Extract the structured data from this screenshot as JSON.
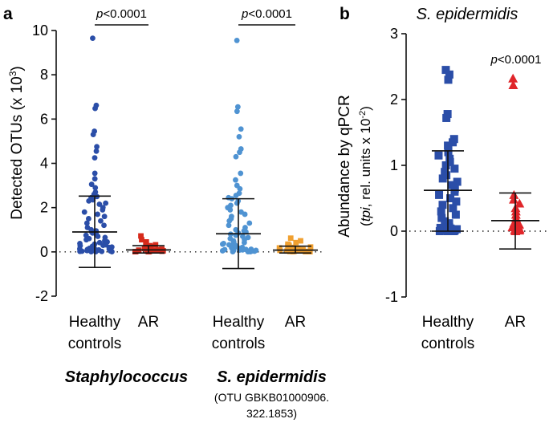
{
  "chart_data": [
    {
      "panel_letter": "a",
      "type": "scatter",
      "ylabel_main": "Detected OTUs (x 10",
      "ylabel_sup": "3",
      "ylabel_end": ")",
      "ylim": [
        -2,
        10
      ],
      "yticks": [
        -2,
        0,
        2,
        4,
        6,
        8,
        10
      ],
      "zero_line": "dotted",
      "groups": [
        {
          "label_line1": "Healthy",
          "label_line2": "controls",
          "color": "#2b4ea8",
          "marker": "circle",
          "mean": 0.9,
          "sd_low": -0.7,
          "sd_high": 2.52,
          "values": [
            9.65,
            6.62,
            6.48,
            5.45,
            5.3,
            4.75,
            4.55,
            4.25,
            3.55,
            3.3,
            3.05,
            2.9,
            2.7,
            2.6,
            2.5,
            2.45,
            2.35,
            2.3,
            2.2,
            2.15,
            2.0,
            1.9,
            1.8,
            1.7,
            1.6,
            1.5,
            1.4,
            1.3,
            1.2,
            1.1,
            1.0,
            0.95,
            0.9,
            0.85,
            0.8,
            0.75,
            0.7,
            0.65,
            0.6,
            0.55,
            0.5,
            0.45,
            0.42,
            0.38,
            0.35,
            0.32,
            0.3,
            0.28,
            0.25,
            0.22,
            0.2,
            0.18,
            0.16,
            0.15,
            0.14,
            0.12,
            0.11,
            0.1,
            0.09,
            0.08,
            0.07,
            0.06,
            0.05,
            0.04,
            0.03,
            0.02,
            0.02,
            0.01,
            0.01,
            0.01
          ]
        },
        {
          "label_line1": "AR",
          "label_line2": "",
          "color": "#d62a1b",
          "marker": "square",
          "mean": 0.09,
          "sd_low": -0.05,
          "sd_high": 0.28,
          "values": [
            0.72,
            0.55,
            0.45,
            0.38,
            0.32,
            0.28,
            0.25,
            0.22,
            0.2,
            0.18,
            0.15,
            0.12,
            0.1,
            0.08,
            0.07,
            0.06,
            0.05,
            0.04,
            0.03,
            0.02,
            0.02,
            0.01,
            0.01,
            0.01
          ]
        },
        {
          "label_line1": "Healthy",
          "label_line2": "controls",
          "color": "#4f93d2",
          "marker": "circle",
          "mean": 0.82,
          "sd_low": -0.75,
          "sd_high": 2.4,
          "values": [
            9.55,
            6.55,
            6.35,
            5.55,
            5.2,
            4.65,
            4.5,
            4.3,
            3.55,
            3.25,
            3.0,
            2.85,
            2.65,
            2.55,
            2.45,
            2.4,
            2.3,
            2.2,
            2.1,
            2.0,
            1.9,
            1.8,
            1.7,
            1.6,
            1.5,
            1.4,
            1.3,
            1.2,
            1.1,
            1.0,
            0.95,
            0.9,
            0.85,
            0.8,
            0.75,
            0.7,
            0.65,
            0.6,
            0.55,
            0.5,
            0.45,
            0.42,
            0.38,
            0.35,
            0.32,
            0.3,
            0.28,
            0.25,
            0.22,
            0.2,
            0.18,
            0.16,
            0.15,
            0.14,
            0.12,
            0.11,
            0.1,
            0.09,
            0.08,
            0.07,
            0.06,
            0.05,
            0.04,
            0.03,
            0.02,
            0.02,
            0.01,
            0.01,
            0.01
          ]
        },
        {
          "label_line1": "AR",
          "label_line2": "",
          "color": "#f0a030",
          "marker": "square",
          "mean": 0.08,
          "sd_low": -0.05,
          "sd_high": 0.26,
          "values": [
            0.62,
            0.5,
            0.42,
            0.35,
            0.3,
            0.26,
            0.22,
            0.2,
            0.18,
            0.15,
            0.12,
            0.1,
            0.08,
            0.07,
            0.06,
            0.05,
            0.04,
            0.03,
            0.02,
            0.02,
            0.01,
            0.01,
            0.01
          ]
        }
      ],
      "significance": [
        {
          "text": "p<0.0001",
          "from_group": 0,
          "to_group": 1
        },
        {
          "text": "p<0.0001",
          "from_group": 2,
          "to_group": 3
        }
      ],
      "genus_labels": [
        {
          "text": "Staphylococcus",
          "under_pair": 0
        },
        {
          "text": "S. epidermidis",
          "under_pair": 1
        }
      ],
      "otu_line1": "(OTU GBKB01000906.",
      "otu_line2": "322.1853)"
    },
    {
      "panel_letter": "b",
      "type": "scatter",
      "title": "S. epidermidis",
      "ylabel_line1": "Abundance by qPCR",
      "ylabel_line2_italic": "tpi",
      "ylabel_line2_rest": ", rel. units x 10",
      "ylabel_line2_sup": "-2",
      "ylabel_line2_end": ")",
      "ylim": [
        -1,
        3
      ],
      "yticks": [
        -1,
        0,
        1,
        2,
        3
      ],
      "zero_line": "dotted",
      "significance_text": "p<0.0001",
      "groups": [
        {
          "label_line1": "Healthy",
          "label_line2": "controls",
          "color": "#2b4ea8",
          "marker": "square",
          "mean": 0.62,
          "sd_low": 0.0,
          "sd_high": 1.22,
          "values": [
            2.45,
            2.38,
            2.3,
            1.78,
            1.72,
            1.4,
            1.35,
            1.3,
            1.25,
            1.2,
            1.15,
            1.1,
            1.05,
            1.0,
            0.95,
            0.9,
            0.85,
            0.8,
            0.75,
            0.7,
            0.65,
            0.6,
            0.55,
            0.5,
            0.45,
            0.4,
            0.35,
            0.3,
            0.25,
            0.2,
            0.15,
            0.12,
            0.1,
            0.08,
            0.06,
            0.05,
            0.04,
            0.03,
            0.02,
            0.02,
            0.01,
            0.01,
            0.01,
            0.0,
            0.0,
            0.0
          ]
        },
        {
          "label_line1": "AR",
          "label_line2": "",
          "color": "#e0262a",
          "marker": "triangle",
          "mean": 0.16,
          "sd_low": -0.27,
          "sd_high": 0.58,
          "values": [
            2.32,
            2.22,
            0.55,
            0.48,
            0.42,
            0.35,
            0.3,
            0.25,
            0.2,
            0.15,
            0.12,
            0.1,
            0.08,
            0.06,
            0.05,
            0.04,
            0.03,
            0.02,
            0.01,
            0.01,
            0.0
          ]
        }
      ]
    }
  ]
}
